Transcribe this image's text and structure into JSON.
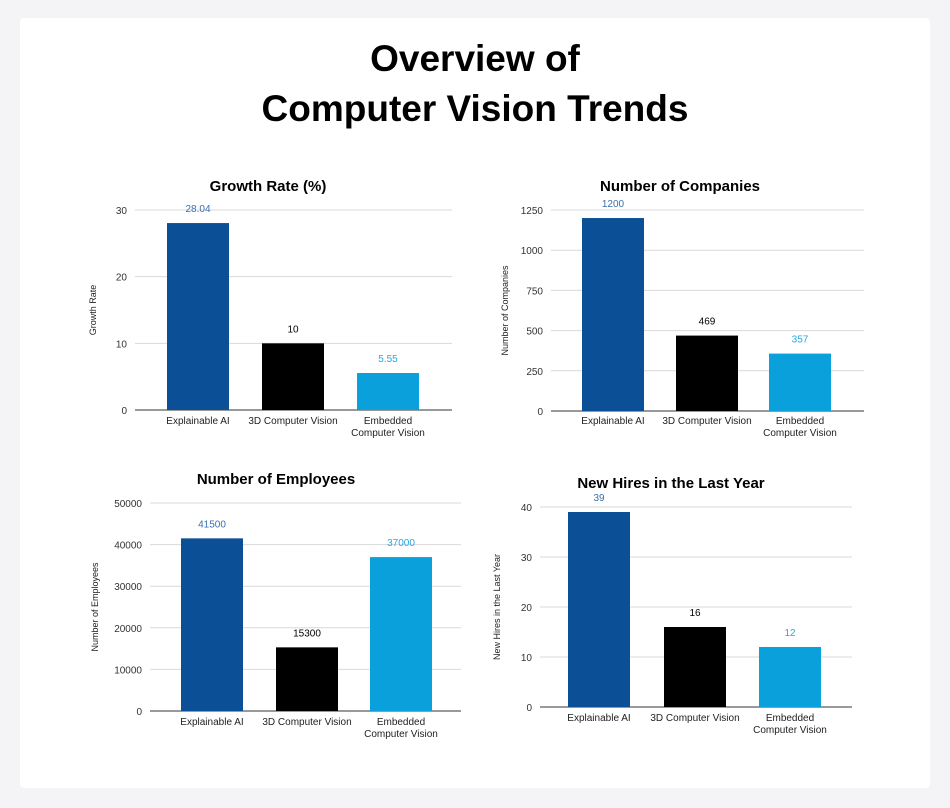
{
  "page": {
    "title_line1": "Overview of",
    "title_line2": "Computer Vision Trends"
  },
  "colors": {
    "explainable_ai": "#0b4f97",
    "computer_vision_3d": "#000000",
    "embedded_cv": "#0aa0dc",
    "label_blue": "#3a6fb0",
    "label_black": "#000000",
    "label_light": "#2aa8de"
  },
  "chart_data": [
    {
      "id": "growth",
      "type": "bar",
      "title": "Growth Rate (%)",
      "xlabel": "",
      "ylabel": "Growth Rate",
      "categories": [
        "Explainable AI",
        "3D Computer Vision",
        "Embedded Computer Vision"
      ],
      "values": [
        28.04,
        10,
        5.55
      ],
      "value_labels": [
        "28.04",
        "10",
        "5.55"
      ],
      "ylim": [
        0,
        30
      ],
      "yticks": [
        0,
        10,
        20,
        30
      ],
      "grid": true
    },
    {
      "id": "companies",
      "type": "bar",
      "title": "Number of Companies",
      "xlabel": "",
      "ylabel": "Number of Companies",
      "categories": [
        "Explainable AI",
        "3D Computer Vision",
        "Embedded Computer Vision"
      ],
      "values": [
        1200,
        469,
        357
      ],
      "value_labels": [
        "1200",
        "469",
        "357"
      ],
      "ylim": [
        0,
        1250
      ],
      "yticks": [
        0,
        250,
        500,
        750,
        1000,
        1250
      ],
      "grid": true
    },
    {
      "id": "employees",
      "type": "bar",
      "title": "Number of Employees",
      "xlabel": "",
      "ylabel": "Number of Employees",
      "categories": [
        "Explainable AI",
        "3D Computer Vision",
        "Embedded Computer Vision"
      ],
      "values": [
        41500,
        15300,
        37000
      ],
      "value_labels": [
        "41500",
        "15300",
        "37000"
      ],
      "ylim": [
        0,
        50000
      ],
      "yticks": [
        0,
        10000,
        20000,
        30000,
        40000,
        50000
      ],
      "grid": true
    },
    {
      "id": "hires",
      "type": "bar",
      "title": "New Hires in the Last Year",
      "xlabel": "",
      "ylabel": "New Hires in the Last Year",
      "categories": [
        "Explainable AI",
        "3D Computer Vision",
        "Embedded Computer Vision"
      ],
      "values": [
        39,
        16,
        12
      ],
      "value_labels": [
        "39",
        "16",
        "12"
      ],
      "ylim": [
        0,
        40
      ],
      "yticks": [
        0,
        10,
        20,
        30,
        40
      ],
      "grid": true
    }
  ]
}
